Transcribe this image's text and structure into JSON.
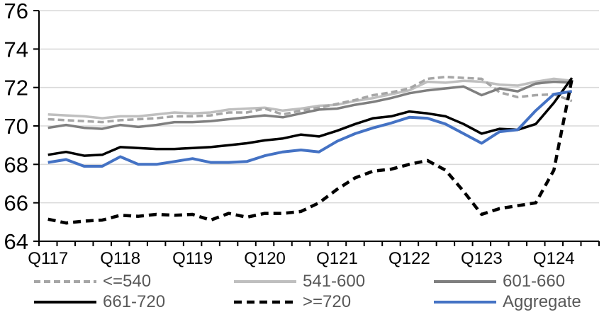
{
  "chart_data": {
    "type": "line",
    "title": "",
    "xlabel": "",
    "ylabel": "",
    "ylim": [
      64,
      76
    ],
    "yticks": [
      64,
      66,
      68,
      70,
      72,
      74,
      76
    ],
    "grid": "horizontal",
    "gridline_color": "#d9d9d9",
    "axis_color": "#000000",
    "legend_position": "bottom",
    "x_axis_visible_labels": [
      "Q117",
      "Q118",
      "Q119",
      "Q120",
      "Q121",
      "Q122",
      "Q123",
      "Q124"
    ],
    "x_axis_visible_label_indices": [
      0,
      4,
      8,
      12,
      16,
      20,
      24,
      28
    ],
    "categories": [
      "Q117",
      "Q217",
      "Q317",
      "Q417",
      "Q118",
      "Q218",
      "Q318",
      "Q418",
      "Q119",
      "Q219",
      "Q319",
      "Q419",
      "Q120",
      "Q220",
      "Q320",
      "Q420",
      "Q121",
      "Q221",
      "Q321",
      "Q421",
      "Q122",
      "Q222",
      "Q322",
      "Q422",
      "Q123",
      "Q223",
      "Q323",
      "Q423",
      "Q124",
      "Q224"
    ],
    "series": [
      {
        "name": "<=540",
        "color": "#a6a6a6",
        "style": "dashed",
        "dash": "9 5",
        "width": 3.5,
        "values": [
          70.35,
          70.3,
          70.25,
          70.2,
          70.3,
          70.35,
          70.4,
          70.5,
          70.5,
          70.55,
          70.7,
          70.7,
          70.9,
          70.6,
          70.8,
          70.95,
          71.15,
          71.35,
          71.6,
          71.75,
          71.95,
          72.45,
          72.55,
          72.5,
          72.45,
          71.75,
          71.5,
          71.6,
          71.65,
          71.3
        ]
      },
      {
        "name": "541-600",
        "color": "#bfbfbf",
        "style": "solid",
        "dash": "",
        "width": 3.5,
        "values": [
          70.6,
          70.55,
          70.5,
          70.4,
          70.5,
          70.5,
          70.6,
          70.7,
          70.65,
          70.7,
          70.85,
          70.9,
          70.95,
          70.8,
          70.9,
          71.05,
          71.1,
          71.3,
          71.45,
          71.65,
          71.85,
          72.3,
          72.25,
          72.35,
          72.3,
          72.15,
          72.1,
          72.3,
          72.45,
          72.35
        ]
      },
      {
        "name": "601-660",
        "color": "#7f7f7f",
        "style": "solid",
        "dash": "",
        "width": 3.5,
        "values": [
          69.9,
          70.05,
          69.9,
          69.85,
          70.05,
          69.95,
          70.05,
          70.2,
          70.2,
          70.25,
          70.35,
          70.45,
          70.55,
          70.45,
          70.65,
          70.85,
          70.9,
          71.1,
          71.25,
          71.45,
          71.7,
          71.85,
          71.95,
          72.05,
          71.6,
          71.95,
          71.8,
          72.2,
          72.3,
          72.25
        ]
      },
      {
        "name": "661-720",
        "color": "#000000",
        "style": "solid",
        "dash": "",
        "width": 3.5,
        "values": [
          68.5,
          68.65,
          68.45,
          68.5,
          68.9,
          68.85,
          68.8,
          68.8,
          68.85,
          68.9,
          69.0,
          69.1,
          69.25,
          69.35,
          69.55,
          69.45,
          69.75,
          70.1,
          70.4,
          70.5,
          70.75,
          70.65,
          70.5,
          70.1,
          69.6,
          69.85,
          69.8,
          70.1,
          71.2,
          72.5
        ]
      },
      {
        "name": ">=720",
        "color": "#000000",
        "style": "dashed",
        "dash": "11 7",
        "width": 4.5,
        "values": [
          65.15,
          64.95,
          65.05,
          65.1,
          65.35,
          65.3,
          65.4,
          65.35,
          65.4,
          65.1,
          65.45,
          65.25,
          65.45,
          65.45,
          65.55,
          66.0,
          66.7,
          67.3,
          67.65,
          67.75,
          68.0,
          68.2,
          67.7,
          66.6,
          65.4,
          65.7,
          65.85,
          66.0,
          67.7,
          72.45
        ]
      },
      {
        "name": "Aggregate",
        "color": "#4472c4",
        "style": "solid",
        "dash": "",
        "width": 4,
        "values": [
          68.1,
          68.25,
          67.9,
          67.9,
          68.4,
          68.0,
          68.0,
          68.15,
          68.3,
          68.1,
          68.1,
          68.15,
          68.45,
          68.65,
          68.75,
          68.65,
          69.2,
          69.6,
          69.9,
          70.15,
          70.45,
          70.4,
          70.1,
          69.6,
          69.1,
          69.7,
          69.8,
          70.8,
          71.65,
          71.8
        ]
      }
    ]
  }
}
